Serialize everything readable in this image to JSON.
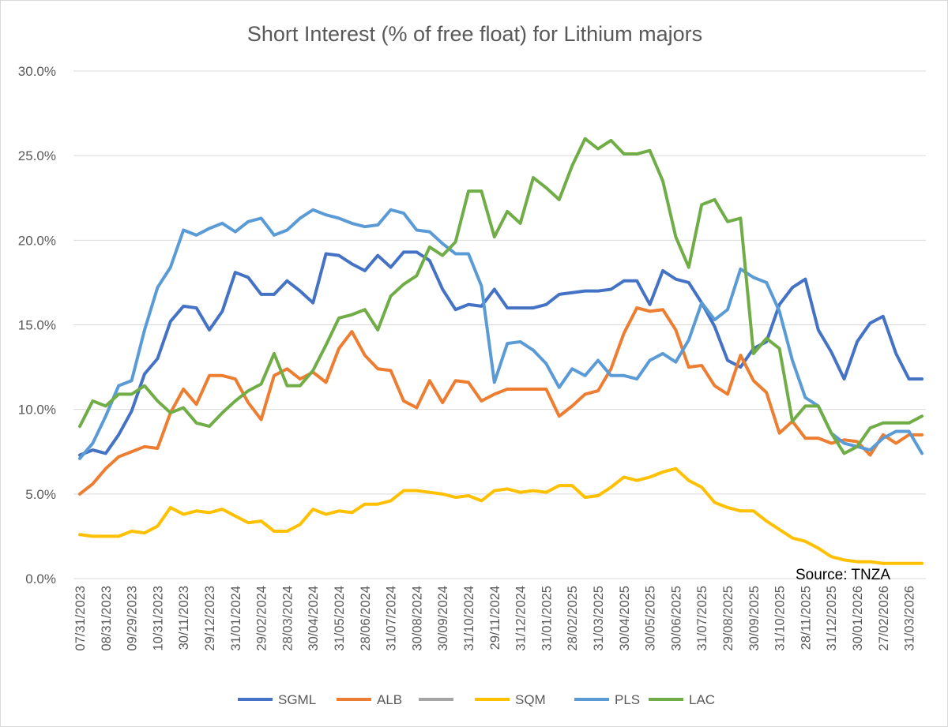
{
  "chart_data": {
    "type": "line",
    "title": "Short Interest (% of free float) for Lithium majors",
    "source": "Source: TNZA",
    "ylim": [
      0,
      30
    ],
    "y_ticks": [
      "0.0%",
      "5.0%",
      "10.0%",
      "15.0%",
      "20.0%",
      "25.0%",
      "30.0%"
    ],
    "y_tick_values": [
      0,
      5,
      10,
      15,
      20,
      25,
      30
    ],
    "grid": "horizontal",
    "legend_position": "bottom",
    "x_tick_labels": [
      "07/31/2023",
      "08/31/2023",
      "09/29/2023",
      "10/31/2023",
      "30/11/2023",
      "29/12/2023",
      "31/01/2024",
      "29/02/2024",
      "28/03/2024",
      "30/04/2024",
      "31/05/2024",
      "28/06/2024",
      "31/07/2024",
      "30/08/2024",
      "30/09/2024",
      "31/10/2024",
      "29/11/2024",
      "31/12/2024",
      "31/01/2025",
      "28/02/2025",
      "31/03/2025",
      "30/04/2025",
      "30/05/2025",
      "30/06/2025",
      "31/07/2025",
      "29/08/2025",
      "30/09/2025",
      "31/10/2025",
      "28/11/2025",
      "31/12/2025",
      "30/01/2026",
      "27/02/2026",
      "31/03/2026"
    ],
    "points_count": 66,
    "series": [
      {
        "name": "SGML",
        "color": "#4472C4",
        "values": [
          7.3,
          7.6,
          7.4,
          8.5,
          9.9,
          12.1,
          13.0,
          15.2,
          16.1,
          16.0,
          14.7,
          15.8,
          18.1,
          17.8,
          16.8,
          16.8,
          17.6,
          17.0,
          16.3,
          19.2,
          19.1,
          18.6,
          18.2,
          19.1,
          18.4,
          19.3,
          19.3,
          18.8,
          17.1,
          15.9,
          16.2,
          16.1,
          17.1,
          16.0,
          16.0,
          16.0,
          16.2,
          16.8,
          16.9,
          17.0,
          17.0,
          17.1,
          17.6,
          17.6,
          16.2,
          18.2,
          17.7,
          17.5,
          16.3,
          14.9,
          12.9,
          12.5,
          13.6,
          14.0,
          16.2,
          17.2,
          17.7,
          14.7,
          13.4,
          11.8,
          14.0,
          15.1,
          15.5,
          13.3,
          11.8,
          11.8
        ]
      },
      {
        "name": "ALB",
        "color": "#ED7D31",
        "values": [
          5.0,
          5.6,
          6.5,
          7.2,
          7.5,
          7.8,
          7.7,
          9.8,
          11.2,
          10.3,
          12.0,
          12.0,
          11.8,
          10.4,
          9.4,
          12.0,
          12.4,
          11.8,
          12.2,
          11.6,
          13.6,
          14.6,
          13.2,
          12.4,
          12.3,
          10.5,
          10.1,
          11.7,
          10.4,
          11.7,
          11.6,
          10.5,
          10.9,
          11.2,
          11.2,
          11.2,
          11.2,
          9.6,
          10.2,
          10.9,
          11.1,
          12.4,
          14.5,
          16.0,
          15.8,
          15.9,
          14.7,
          12.5,
          12.6,
          11.4,
          10.9,
          13.2,
          11.7,
          11.0,
          8.6,
          9.3,
          8.3,
          8.3,
          8.0,
          8.2,
          8.1,
          7.3,
          8.5,
          8.0,
          8.5,
          8.5
        ]
      },
      {
        "name": "",
        "color": "#A5A5A5",
        "values": []
      },
      {
        "name": "SQM",
        "color": "#FFC000",
        "values": [
          2.6,
          2.5,
          2.5,
          2.5,
          2.8,
          2.7,
          3.1,
          4.2,
          3.8,
          4.0,
          3.9,
          4.1,
          3.7,
          3.3,
          3.4,
          2.8,
          2.8,
          3.2,
          4.1,
          3.8,
          4.0,
          3.9,
          4.4,
          4.4,
          4.6,
          5.2,
          5.2,
          5.1,
          5.0,
          4.8,
          4.9,
          4.6,
          5.2,
          5.3,
          5.1,
          5.2,
          5.1,
          5.5,
          5.5,
          4.8,
          4.9,
          5.4,
          6.0,
          5.8,
          6.0,
          6.3,
          6.5,
          5.8,
          5.4,
          4.5,
          4.2,
          4.0,
          4.0,
          3.4,
          2.9,
          2.4,
          2.2,
          1.8,
          1.3,
          1.1,
          1.0,
          1.0,
          0.9,
          0.9,
          0.9,
          0.9
        ]
      },
      {
        "name": "PLS",
        "color": "#5B9BD5",
        "values": [
          7.1,
          8.0,
          9.6,
          11.4,
          11.7,
          14.7,
          17.2,
          18.4,
          20.6,
          20.3,
          20.7,
          21.0,
          20.5,
          21.1,
          21.3,
          20.3,
          20.6,
          21.3,
          21.8,
          21.5,
          21.3,
          21.0,
          20.8,
          20.9,
          21.8,
          21.6,
          20.6,
          20.5,
          19.8,
          19.2,
          19.2,
          17.3,
          11.6,
          13.9,
          14.0,
          13.5,
          12.7,
          11.3,
          12.4,
          12.0,
          12.9,
          12.0,
          12.0,
          11.8,
          12.9,
          13.3,
          12.8,
          14.1,
          16.3,
          15.3,
          15.9,
          18.3,
          17.8,
          17.5,
          15.8,
          12.9,
          10.7,
          10.2,
          8.6,
          8.0,
          7.8,
          7.6,
          8.3,
          8.7,
          8.7,
          7.4
        ]
      },
      {
        "name": "LAC",
        "color": "#70AD47",
        "values": [
          9.0,
          10.5,
          10.2,
          10.9,
          10.9,
          11.4,
          10.5,
          9.8,
          10.1,
          9.2,
          9.0,
          9.8,
          10.5,
          11.1,
          11.5,
          13.3,
          11.4,
          11.4,
          12.3,
          13.8,
          15.4,
          15.6,
          15.9,
          14.7,
          16.7,
          17.4,
          17.9,
          19.6,
          19.1,
          19.9,
          22.9,
          22.9,
          20.2,
          21.7,
          21.0,
          23.7,
          23.1,
          22.4,
          24.4,
          26.0,
          25.4,
          25.9,
          25.1,
          25.1,
          25.3,
          23.5,
          20.2,
          18.4,
          22.1,
          22.4,
          21.1,
          21.3,
          13.3,
          14.2,
          13.6,
          9.3,
          10.2,
          10.2,
          8.6,
          7.4,
          7.8,
          8.9,
          9.2,
          9.2,
          9.2,
          9.6
        ]
      }
    ]
  }
}
